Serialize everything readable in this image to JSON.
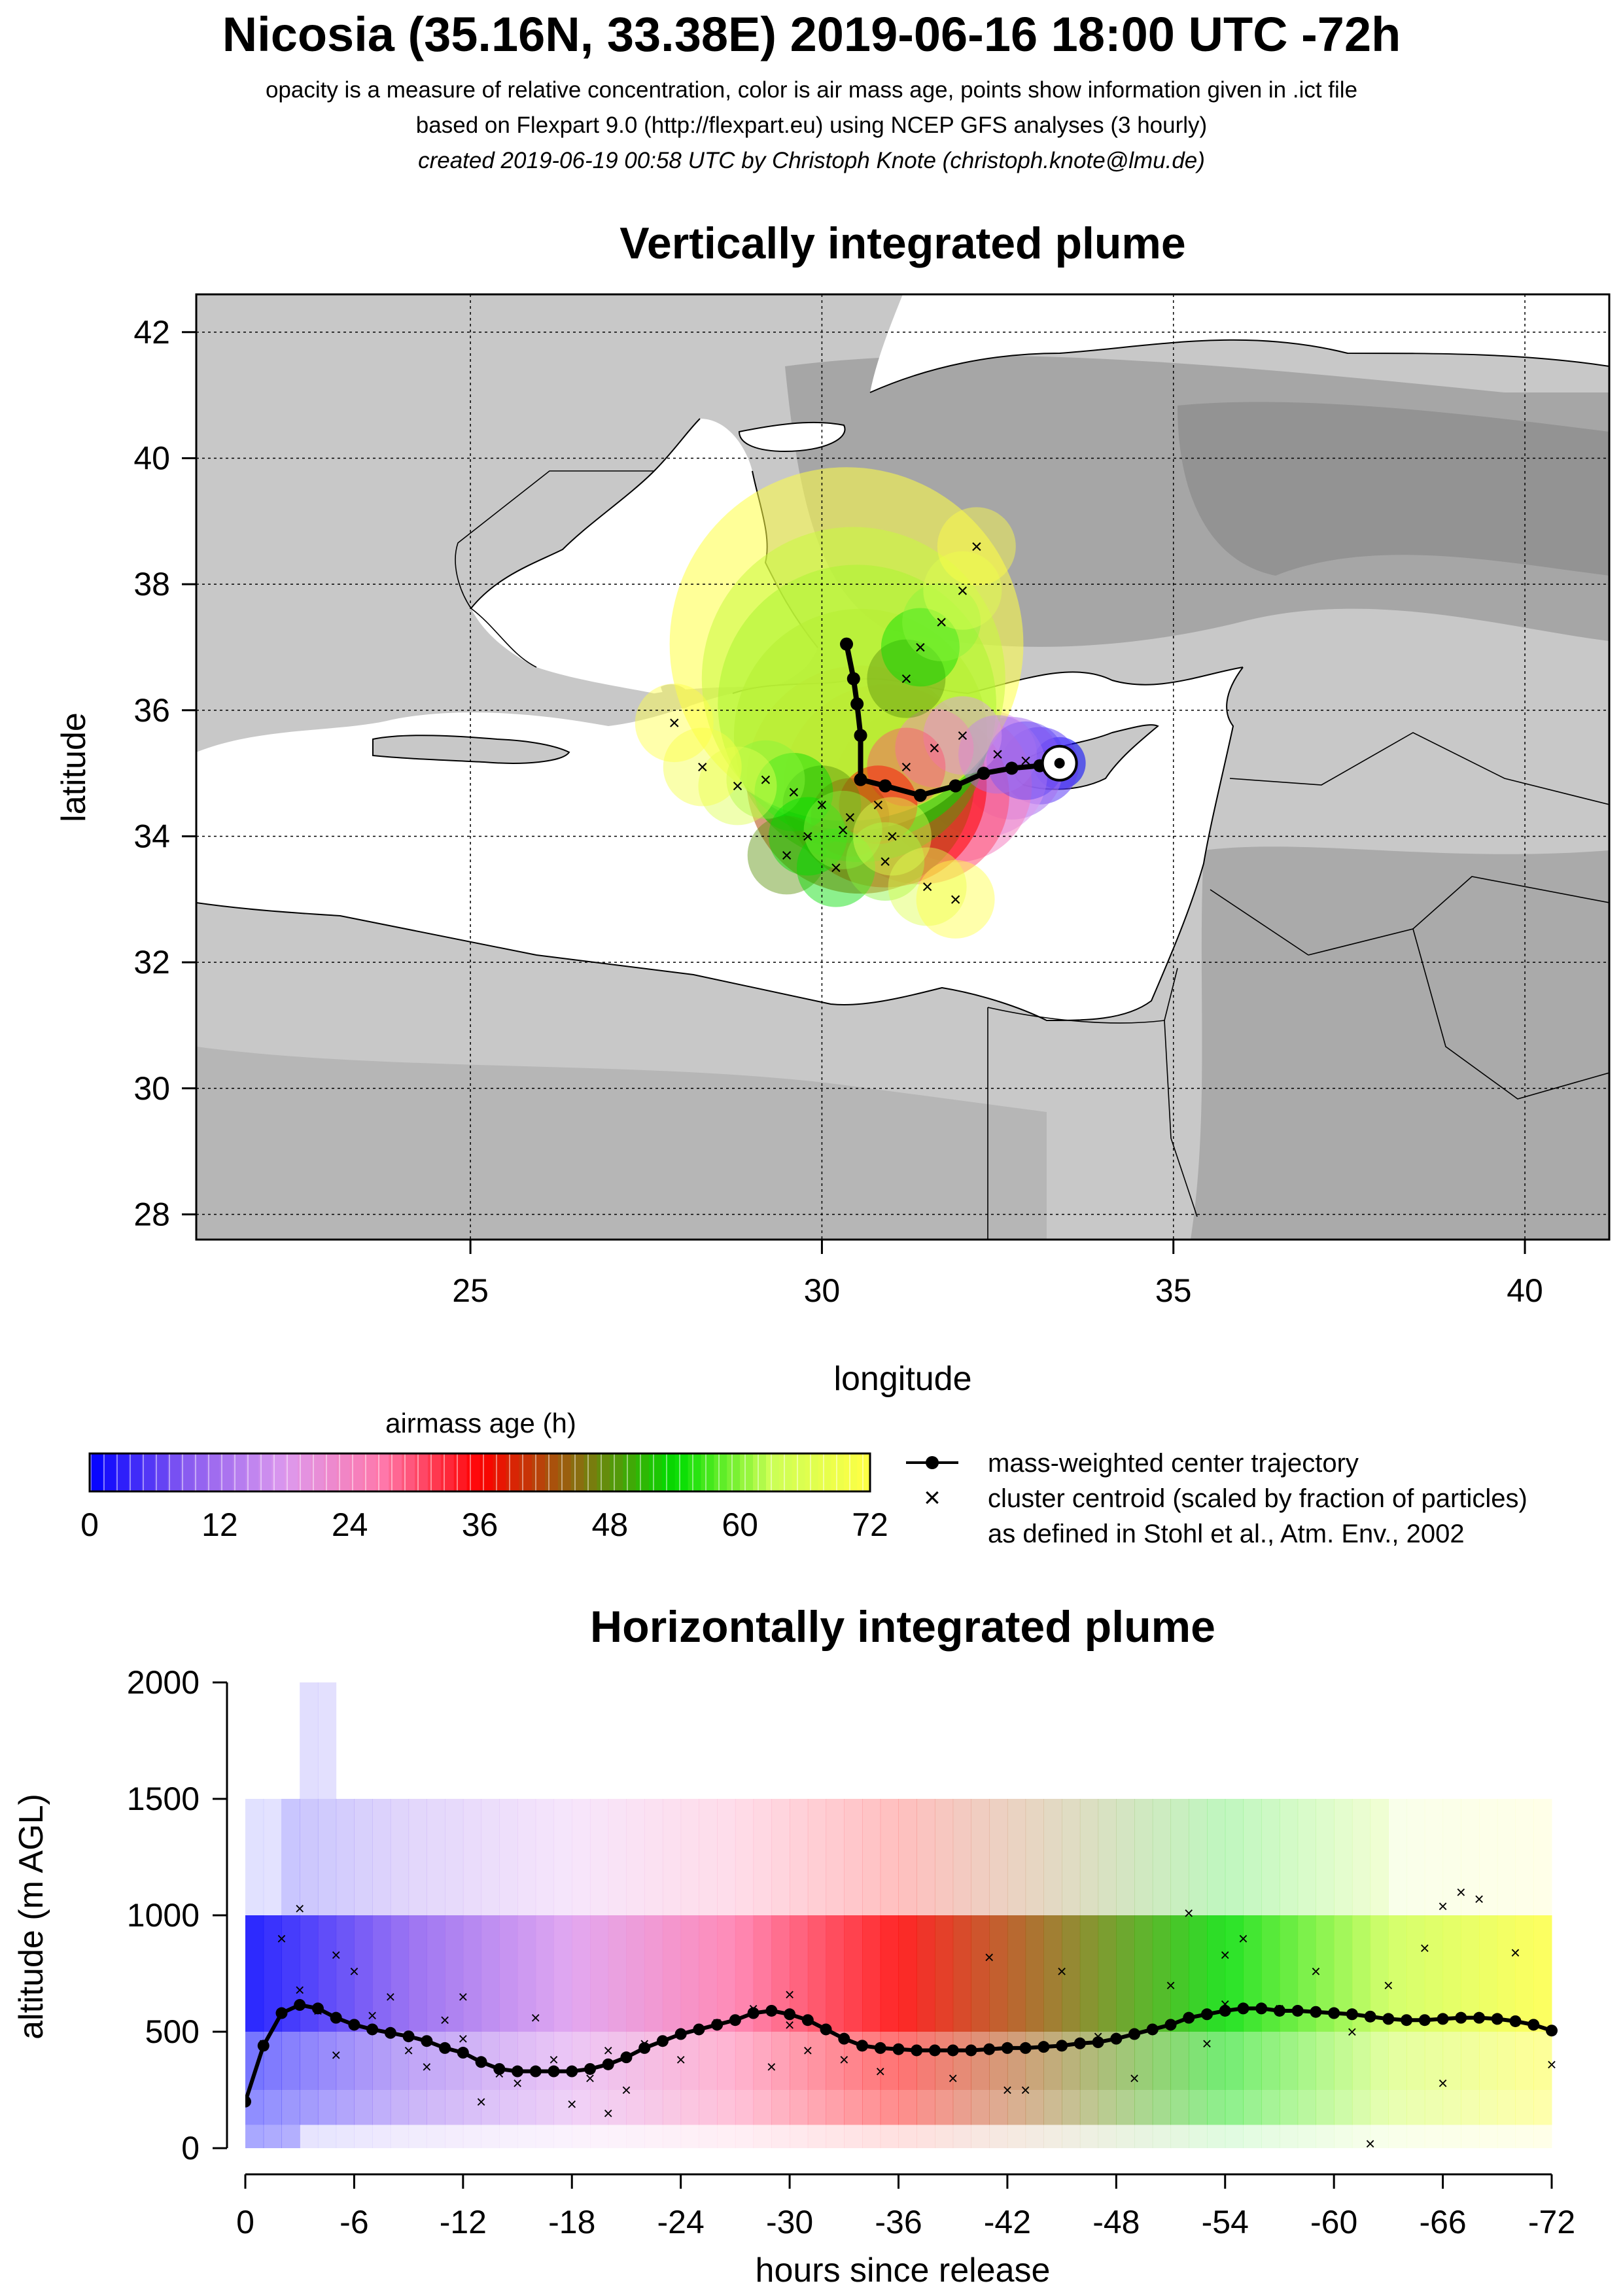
{
  "header": {
    "title": "Nicosia (35.16N, 33.38E) 2019-06-16 18:00 UTC -72h",
    "line1": "opacity is a measure of relative concentration, color is air mass age, points show information given in .ict file",
    "line2": "based on Flexpart 9.0 (http://flexpart.eu) using NCEP GFS analyses (3 hourly)",
    "line3": "created 2019-06-19 00:58 UTC by Christoph Knote (christoph.knote@lmu.de)"
  },
  "colors": {
    "age_scale": [
      "#0000ff",
      "#8a5cf0",
      "#dd99ee",
      "#ff77aa",
      "#ff0000",
      "#8a6e10",
      "#00dd00",
      "#ccff55",
      "#ffff44"
    ],
    "land": "#c8c8c8",
    "land_dark": "#9a9a9a",
    "sea": "#ffffff",
    "trajectory": "#000000"
  },
  "chart_data": [
    {
      "type": "map",
      "title": "Vertically integrated plume",
      "xlabel": "longitude",
      "ylabel": "latitude",
      "xlim": [
        21.1,
        41.2
      ],
      "ylim": [
        27.6,
        42.6
      ],
      "xticks": [
        25,
        30,
        35,
        40
      ],
      "yticks": [
        28,
        30,
        32,
        34,
        36,
        38,
        40,
        42
      ],
      "grid": true,
      "release_site": {
        "lon": 33.38,
        "lat": 35.16
      },
      "center_trajectory": {
        "lon": [
          33.38,
          33.1,
          32.7,
          32.3,
          31.9,
          31.4,
          30.9,
          30.55,
          30.55,
          30.5,
          30.45,
          30.35
        ],
        "lat": [
          35.16,
          35.12,
          35.08,
          35.0,
          34.8,
          34.65,
          34.8,
          34.9,
          35.6,
          36.1,
          36.5,
          37.05
        ],
        "age_h": [
          0,
          6,
          12,
          18,
          24,
          30,
          36,
          42,
          48,
          54,
          60,
          72
        ]
      },
      "cluster_centroids": {
        "lon": [
          32.9,
          32.5,
          32.0,
          31.6,
          31.2,
          30.8,
          30.4,
          30.0,
          29.6,
          29.2,
          28.8,
          28.3,
          27.9,
          29.5,
          30.2,
          30.9,
          31.5,
          31.9,
          31.2,
          31.4,
          31.7,
          32.0,
          32.2,
          29.8,
          30.3,
          31.0
        ],
        "lat": [
          35.2,
          35.3,
          35.6,
          35.4,
          35.1,
          34.5,
          34.3,
          34.5,
          34.7,
          34.9,
          34.8,
          35.1,
          35.8,
          33.7,
          33.5,
          33.6,
          33.2,
          33.0,
          36.5,
          37.0,
          37.4,
          37.9,
          38.6,
          34.0,
          34.1,
          34.0
        ],
        "age_h": [
          6,
          12,
          18,
          24,
          30,
          36,
          42,
          48,
          54,
          60,
          66,
          70,
          72,
          48,
          54,
          60,
          66,
          72,
          48,
          54,
          60,
          66,
          72,
          54,
          60,
          66
        ]
      },
      "colorbar": {
        "label": "airmass age (h)",
        "ticks": [
          0,
          12,
          24,
          36,
          48,
          60,
          72
        ],
        "range": [
          0,
          72
        ]
      },
      "legend": {
        "position": "bottom-right",
        "entries": [
          "mass-weighted center trajectory",
          "cluster centroid (scaled by fraction of particles)",
          "as defined in Stohl et al., Atm. Env., 2002"
        ]
      }
    },
    {
      "type": "line",
      "title": "Horizontally integrated plume",
      "xlabel": "hours since release",
      "ylabel": "altitude (m AGL)",
      "xlim": [
        0,
        72
      ],
      "ylim": [
        0,
        2000
      ],
      "xticks": [
        0,
        6,
        12,
        18,
        24,
        30,
        36,
        42,
        48,
        54,
        60,
        66,
        72
      ],
      "xticklabels": [
        "0",
        "-6",
        "-12",
        "-18",
        "-24",
        "-30",
        "-36",
        "-42",
        "-48",
        "-54",
        "-60",
        "-66",
        "-72"
      ],
      "yticks": [
        0,
        500,
        1000,
        1500,
        2000
      ],
      "band_levels": [
        0,
        100,
        250,
        500,
        1000,
        1500,
        2000
      ],
      "series": [
        {
          "name": "mass-weighted center trajectory",
          "x": [
            0,
            1,
            2,
            3,
            4,
            5,
            6,
            7,
            8,
            9,
            10,
            11,
            12,
            13,
            14,
            15,
            16,
            17,
            18,
            19,
            20,
            21,
            22,
            23,
            24,
            25,
            26,
            27,
            28,
            29,
            30,
            31,
            32,
            33,
            34,
            35,
            36,
            37,
            38,
            39,
            40,
            41,
            42,
            43,
            44,
            45,
            46,
            47,
            48,
            49,
            50,
            51,
            52,
            53,
            54,
            55,
            56,
            57,
            58,
            59,
            60,
            61,
            62,
            63,
            64,
            65,
            66,
            67,
            68,
            69,
            70,
            71,
            72
          ],
          "y": [
            200,
            440,
            580,
            615,
            600,
            560,
            530,
            510,
            495,
            480,
            460,
            430,
            410,
            370,
            340,
            330,
            330,
            330,
            330,
            340,
            360,
            390,
            430,
            460,
            490,
            510,
            530,
            550,
            580,
            590,
            575,
            550,
            510,
            470,
            440,
            430,
            425,
            420,
            420,
            420,
            420,
            425,
            430,
            430,
            435,
            440,
            450,
            455,
            470,
            490,
            510,
            530,
            560,
            575,
            590,
            600,
            600,
            590,
            590,
            585,
            580,
            575,
            565,
            555,
            550,
            550,
            555,
            560,
            560,
            555,
            545,
            530,
            505
          ]
        },
        {
          "name": "cluster centroid",
          "x": [
            1,
            2,
            3,
            3,
            4,
            5,
            5,
            6,
            7,
            8,
            9,
            10,
            11,
            12,
            13,
            14,
            15,
            16,
            17,
            18,
            19,
            20,
            21,
            22,
            24,
            26,
            28,
            29,
            30,
            31,
            33,
            35,
            37,
            39,
            41,
            43,
            45,
            47,
            49,
            51,
            52,
            53,
            54,
            55,
            57,
            59,
            61,
            63,
            65,
            66,
            67,
            68,
            70,
            72,
            62,
            12,
            20,
            30,
            42,
            54,
            66
          ],
          "y": [
            450,
            900,
            680,
            1030,
            590,
            830,
            400,
            760,
            570,
            650,
            420,
            350,
            550,
            470,
            200,
            320,
            280,
            560,
            380,
            190,
            300,
            420,
            250,
            450,
            380,
            540,
            600,
            350,
            660,
            420,
            380,
            330,
            420,
            300,
            820,
            250,
            760,
            480,
            300,
            700,
            1010,
            450,
            830,
            900,
            600,
            760,
            500,
            700,
            860,
            1040,
            1100,
            1070,
            840,
            360,
            20,
            650,
            150,
            530,
            250,
            620,
            280
          ]
        }
      ]
    }
  ]
}
